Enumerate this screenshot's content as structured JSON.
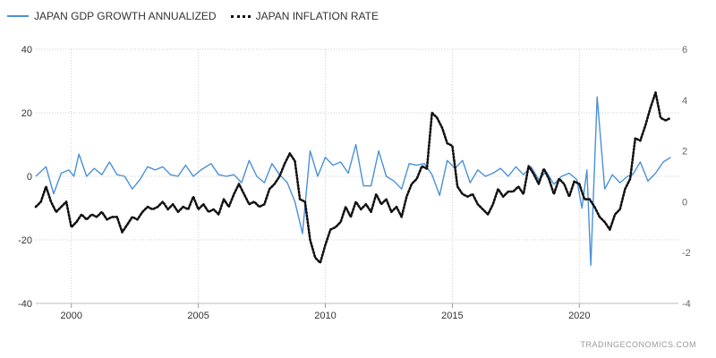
{
  "legend": {
    "gdp_label": "JAPAN GDP GROWTH ANNUALIZED",
    "inflation_label": "JAPAN INFLATION RATE"
  },
  "watermark": "TRADINGECONOMICS.COM",
  "colors": {
    "gdp": "#4a90d9",
    "inflation": "#111111",
    "grid": "#cfcfcf"
  },
  "chart_data": {
    "type": "line",
    "title": "",
    "xlabel": "",
    "ylabel": "",
    "legend_position": "top-left",
    "grid": true,
    "xlim": [
      1998.6,
      2023.9
    ],
    "x_ticks": [
      2000,
      2005,
      2010,
      2015,
      2020
    ],
    "y_left": {
      "lim": [
        -40,
        40
      ],
      "ticks": [
        -40,
        -20,
        0,
        20,
        40
      ]
    },
    "y_right": {
      "lim": [
        -4,
        6
      ],
      "ticks": [
        -4,
        -2,
        0,
        2,
        4,
        6
      ]
    },
    "series": [
      {
        "name": "JAPAN GDP GROWTH ANNUALIZED",
        "axis": "left",
        "style": "solid",
        "points": [
          [
            1998.6,
            0.0
          ],
          [
            1999.0,
            3.0
          ],
          [
            1999.3,
            -5.5
          ],
          [
            1999.6,
            1.0
          ],
          [
            1999.9,
            2.0
          ],
          [
            2000.1,
            0.0
          ],
          [
            2000.3,
            7.0
          ],
          [
            2000.6,
            0.0
          ],
          [
            2000.9,
            2.5
          ],
          [
            2001.2,
            0.5
          ],
          [
            2001.5,
            4.5
          ],
          [
            2001.8,
            0.5
          ],
          [
            2002.1,
            0.0
          ],
          [
            2002.4,
            -4.0
          ],
          [
            2002.7,
            -1.0
          ],
          [
            2003.0,
            3.0
          ],
          [
            2003.3,
            2.0
          ],
          [
            2003.6,
            3.0
          ],
          [
            2003.9,
            0.5
          ],
          [
            2004.2,
            0.0
          ],
          [
            2004.5,
            3.5
          ],
          [
            2004.8,
            0.0
          ],
          [
            2005.1,
            2.0
          ],
          [
            2005.5,
            4.0
          ],
          [
            2005.8,
            0.5
          ],
          [
            2006.1,
            0.0
          ],
          [
            2006.4,
            0.5
          ],
          [
            2006.7,
            -2.0
          ],
          [
            2007.0,
            5.0
          ],
          [
            2007.3,
            0.0
          ],
          [
            2007.6,
            -2.0
          ],
          [
            2007.9,
            4.0
          ],
          [
            2008.2,
            0.5
          ],
          [
            2008.5,
            -2.0
          ],
          [
            2008.8,
            -8.0
          ],
          [
            2009.1,
            -18.0
          ],
          [
            2009.4,
            8.0
          ],
          [
            2009.7,
            0.0
          ],
          [
            2010.0,
            6.0
          ],
          [
            2010.3,
            3.5
          ],
          [
            2010.6,
            4.5
          ],
          [
            2010.9,
            1.0
          ],
          [
            2011.2,
            10.0
          ],
          [
            2011.5,
            -3.0
          ],
          [
            2011.8,
            -3.0
          ],
          [
            2012.1,
            8.0
          ],
          [
            2012.4,
            0.0
          ],
          [
            2012.7,
            -1.5
          ],
          [
            2013.0,
            -4.0
          ],
          [
            2013.3,
            4.0
          ],
          [
            2013.6,
            3.5
          ],
          [
            2013.9,
            4.0
          ],
          [
            2014.2,
            0.5
          ],
          [
            2014.5,
            -6.0
          ],
          [
            2014.8,
            5.0
          ],
          [
            2015.1,
            2.5
          ],
          [
            2015.4,
            5.0
          ],
          [
            2015.7,
            -2.0
          ],
          [
            2016.0,
            2.0
          ],
          [
            2016.3,
            0.0
          ],
          [
            2016.6,
            1.0
          ],
          [
            2016.9,
            2.5
          ],
          [
            2017.2,
            0.0
          ],
          [
            2017.5,
            3.0
          ],
          [
            2017.8,
            0.5
          ],
          [
            2018.1,
            3.0
          ],
          [
            2018.4,
            -1.0
          ],
          [
            2018.7,
            1.5
          ],
          [
            2019.0,
            -2.5
          ],
          [
            2019.3,
            0.0
          ],
          [
            2019.6,
            1.0
          ],
          [
            2019.9,
            -1.0
          ],
          [
            2020.1,
            -10.0
          ],
          [
            2020.3,
            2.0
          ],
          [
            2020.45,
            -28.0
          ],
          [
            2020.7,
            25.0
          ],
          [
            2021.0,
            -4.0
          ],
          [
            2021.3,
            0.5
          ],
          [
            2021.6,
            -2.0
          ],
          [
            2021.9,
            0.0
          ],
          [
            2022.1,
            0.5
          ],
          [
            2022.4,
            4.5
          ],
          [
            2022.7,
            -1.5
          ],
          [
            2023.0,
            1.0
          ],
          [
            2023.3,
            4.5
          ],
          [
            2023.6,
            6.0
          ]
        ]
      },
      {
        "name": "JAPAN INFLATION RATE",
        "axis": "right",
        "style": "dotted",
        "points": [
          [
            1998.6,
            -0.2
          ],
          [
            1998.8,
            0.0
          ],
          [
            1999.0,
            0.6
          ],
          [
            1999.2,
            0.0
          ],
          [
            1999.4,
            -0.4
          ],
          [
            1999.6,
            -0.2
          ],
          [
            1999.8,
            0.0
          ],
          [
            2000.0,
            -1.0
          ],
          [
            2000.2,
            -0.8
          ],
          [
            2000.4,
            -0.5
          ],
          [
            2000.6,
            -0.7
          ],
          [
            2000.8,
            -0.5
          ],
          [
            2001.0,
            -0.6
          ],
          [
            2001.2,
            -0.4
          ],
          [
            2001.4,
            -0.7
          ],
          [
            2001.6,
            -0.6
          ],
          [
            2001.8,
            -0.6
          ],
          [
            2002.0,
            -1.2
          ],
          [
            2002.2,
            -0.9
          ],
          [
            2002.4,
            -0.6
          ],
          [
            2002.6,
            -0.7
          ],
          [
            2002.8,
            -0.4
          ],
          [
            2003.0,
            -0.2
          ],
          [
            2003.2,
            -0.3
          ],
          [
            2003.4,
            -0.2
          ],
          [
            2003.6,
            0.0
          ],
          [
            2003.8,
            -0.3
          ],
          [
            2004.0,
            -0.1
          ],
          [
            2004.2,
            -0.4
          ],
          [
            2004.4,
            -0.2
          ],
          [
            2004.6,
            -0.3
          ],
          [
            2004.8,
            0.2
          ],
          [
            2005.0,
            -0.3
          ],
          [
            2005.2,
            -0.1
          ],
          [
            2005.4,
            -0.4
          ],
          [
            2005.6,
            -0.3
          ],
          [
            2005.8,
            -0.5
          ],
          [
            2006.0,
            0.1
          ],
          [
            2006.2,
            -0.2
          ],
          [
            2006.4,
            0.3
          ],
          [
            2006.6,
            0.7
          ],
          [
            2006.8,
            0.3
          ],
          [
            2007.0,
            -0.1
          ],
          [
            2007.2,
            0.0
          ],
          [
            2007.4,
            -0.2
          ],
          [
            2007.6,
            -0.1
          ],
          [
            2007.8,
            0.5
          ],
          [
            2008.0,
            0.7
          ],
          [
            2008.2,
            1.0
          ],
          [
            2008.4,
            1.5
          ],
          [
            2008.6,
            1.9
          ],
          [
            2008.8,
            1.6
          ],
          [
            2009.0,
            0.1
          ],
          [
            2009.2,
            0.0
          ],
          [
            2009.4,
            -1.5
          ],
          [
            2009.6,
            -2.2
          ],
          [
            2009.8,
            -2.4
          ],
          [
            2010.0,
            -1.7
          ],
          [
            2010.2,
            -1.1
          ],
          [
            2010.4,
            -1.0
          ],
          [
            2010.6,
            -0.8
          ],
          [
            2010.8,
            -0.2
          ],
          [
            2011.0,
            -0.6
          ],
          [
            2011.2,
            0.0
          ],
          [
            2011.4,
            -0.3
          ],
          [
            2011.6,
            -0.1
          ],
          [
            2011.8,
            -0.4
          ],
          [
            2012.0,
            0.3
          ],
          [
            2012.2,
            -0.1
          ],
          [
            2012.4,
            0.1
          ],
          [
            2012.6,
            -0.4
          ],
          [
            2012.8,
            -0.2
          ],
          [
            2013.0,
            -0.6
          ],
          [
            2013.2,
            0.2
          ],
          [
            2013.4,
            0.7
          ],
          [
            2013.6,
            0.9
          ],
          [
            2013.8,
            1.4
          ],
          [
            2014.0,
            1.3
          ],
          [
            2014.2,
            3.5
          ],
          [
            2014.4,
            3.3
          ],
          [
            2014.6,
            2.9
          ],
          [
            2014.8,
            2.3
          ],
          [
            2015.0,
            2.2
          ],
          [
            2015.2,
            0.6
          ],
          [
            2015.4,
            0.3
          ],
          [
            2015.6,
            0.2
          ],
          [
            2015.8,
            0.3
          ],
          [
            2016.0,
            -0.1
          ],
          [
            2016.2,
            -0.3
          ],
          [
            2016.4,
            -0.5
          ],
          [
            2016.6,
            -0.1
          ],
          [
            2016.8,
            0.5
          ],
          [
            2017.0,
            0.2
          ],
          [
            2017.2,
            0.4
          ],
          [
            2017.4,
            0.4
          ],
          [
            2017.6,
            0.6
          ],
          [
            2017.8,
            0.3
          ],
          [
            2018.0,
            1.4
          ],
          [
            2018.2,
            1.1
          ],
          [
            2018.4,
            0.7
          ],
          [
            2018.6,
            1.3
          ],
          [
            2018.8,
            0.9
          ],
          [
            2019.0,
            0.3
          ],
          [
            2019.2,
            0.9
          ],
          [
            2019.4,
            0.7
          ],
          [
            2019.6,
            0.2
          ],
          [
            2019.8,
            0.8
          ],
          [
            2020.0,
            0.7
          ],
          [
            2020.2,
            0.1
          ],
          [
            2020.4,
            0.1
          ],
          [
            2020.6,
            -0.2
          ],
          [
            2020.8,
            -0.6
          ],
          [
            2021.0,
            -0.8
          ],
          [
            2021.2,
            -1.1
          ],
          [
            2021.4,
            -0.5
          ],
          [
            2021.6,
            -0.3
          ],
          [
            2021.8,
            0.5
          ],
          [
            2022.0,
            0.9
          ],
          [
            2022.2,
            2.5
          ],
          [
            2022.4,
            2.4
          ],
          [
            2022.6,
            3.0
          ],
          [
            2022.8,
            3.7
          ],
          [
            2023.0,
            4.3
          ],
          [
            2023.2,
            3.3
          ],
          [
            2023.4,
            3.2
          ],
          [
            2023.6,
            3.3
          ]
        ]
      }
    ]
  }
}
